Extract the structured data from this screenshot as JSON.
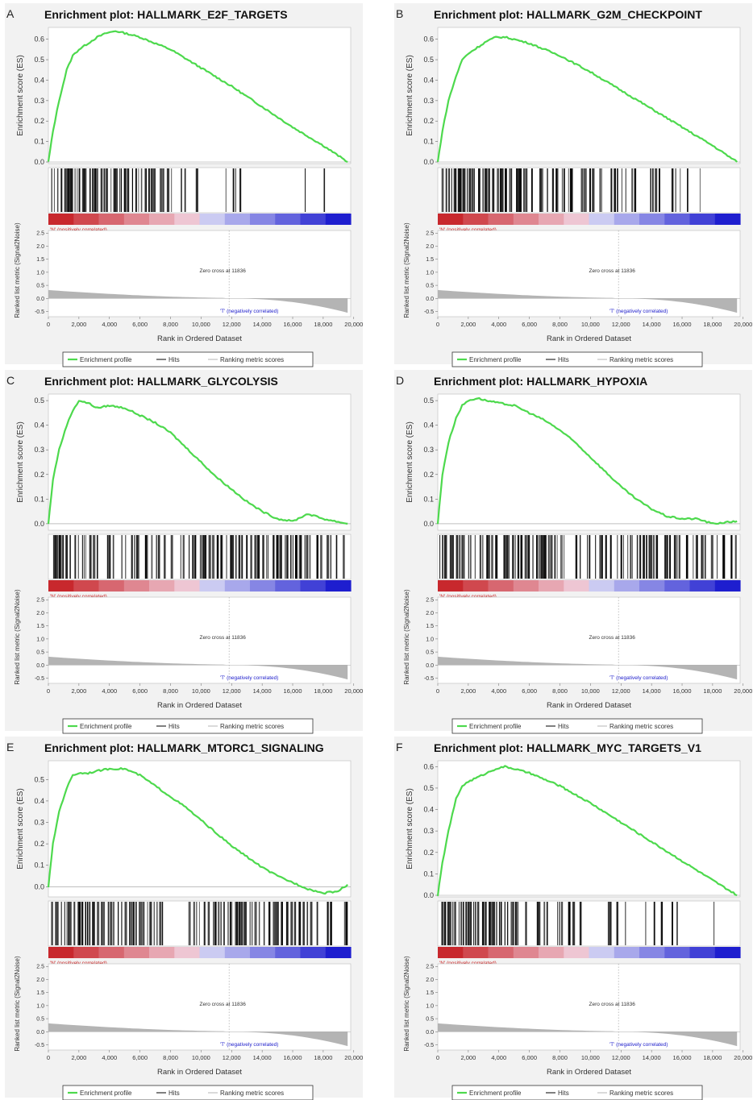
{
  "figure": {
    "shared": {
      "es_axis_label": "Enrichment score (ES)",
      "metric_axis_label": "Ranked list metric (Signal2Noise)",
      "x_axis_label": "Rank in Ordered Dataset",
      "pos_label": "'N' (positively correlated)",
      "neg_label": "'T' (negatively correlated)",
      "zero_cross_label": "Zero cross at 11836",
      "zero_cross": 11836,
      "legend": {
        "profile": "Enrichment profile",
        "hits": "Hits",
        "metric": "Ranking metric scores"
      },
      "x_ticks": [
        0,
        2000,
        4000,
        6000,
        8000,
        10000,
        12000,
        14000,
        16000,
        18000,
        20000
      ],
      "x_tick_labels": [
        "0",
        "2,000",
        "4,000",
        "6,000",
        "8,000",
        "10,000",
        "12,000",
        "14,000",
        "16,000",
        "18,000",
        "20,000"
      ],
      "x_max": 19800,
      "metric_ticks": [
        "2.5",
        "2.0",
        "1.5",
        "1.0",
        "0.5",
        "0.0",
        "-0.5"
      ],
      "colors": {
        "profile": "#4dd94d",
        "hits": "#000000",
        "metric": "#b4b4b4",
        "red": "#c8282d",
        "blue": "#1e1ecf",
        "pos_text": "#cc2222",
        "neg_text": "#2222cc"
      }
    }
  },
  "chart_data": [
    {
      "panel_letter": "A",
      "type": "line",
      "title": "Enrichment plot: HALLMARK_E2F_TARGETS",
      "xlabel": "Rank in Ordered Dataset",
      "ylabel": "Enrichment score (ES)",
      "ylim": [
        0,
        0.65
      ],
      "y_ticks": [
        "0.0",
        "0.1",
        "0.2",
        "0.3",
        "0.4",
        "0.5",
        "0.6"
      ],
      "x": [
        0,
        300,
        700,
        1200,
        1600,
        2000,
        2600,
        3200,
        3800,
        4400,
        5000,
        6000,
        8000,
        10000,
        12000,
        14000,
        16000,
        18000,
        19600
      ],
      "y": [
        0.0,
        0.15,
        0.3,
        0.45,
        0.52,
        0.55,
        0.58,
        0.61,
        0.63,
        0.64,
        0.63,
        0.61,
        0.55,
        0.46,
        0.37,
        0.27,
        0.17,
        0.08,
        0.0
      ],
      "hit_zones": [
        [
          0,
          6400,
          1.0
        ],
        [
          6400,
          9400,
          0.55
        ],
        [
          9400,
          15200,
          0.12
        ],
        [
          15200,
          18200,
          0.1
        ],
        [
          18200,
          19600,
          0.0
        ]
      ]
    },
    {
      "panel_letter": "B",
      "type": "line",
      "title": "Enrichment plot: HALLMARK_G2M_CHECKPOINT",
      "xlabel": "Rank in Ordered Dataset",
      "ylabel": "Enrichment score (ES)",
      "ylim": [
        0,
        0.65
      ],
      "y_ticks": [
        "0.0",
        "0.1",
        "0.2",
        "0.3",
        "0.4",
        "0.5",
        "0.6"
      ],
      "x": [
        0,
        300,
        700,
        1200,
        1600,
        2000,
        2600,
        3200,
        3800,
        4400,
        5000,
        6000,
        8000,
        10000,
        12000,
        14000,
        16000,
        18000,
        19600
      ],
      "y": [
        0.0,
        0.15,
        0.3,
        0.42,
        0.5,
        0.53,
        0.56,
        0.59,
        0.61,
        0.61,
        0.6,
        0.58,
        0.52,
        0.44,
        0.35,
        0.26,
        0.17,
        0.08,
        0.0
      ],
      "hit_zones": [
        [
          0,
          5000,
          1.0
        ],
        [
          5000,
          9000,
          0.75
        ],
        [
          9000,
          15000,
          0.45
        ],
        [
          15000,
          18000,
          0.3
        ],
        [
          18000,
          19600,
          0.15
        ]
      ]
    },
    {
      "panel_letter": "C",
      "type": "line",
      "title": "Enrichment plot: HALLMARK_GLYCOLYSIS",
      "xlabel": "Rank in Ordered Dataset",
      "ylabel": "Enrichment score (ES)",
      "ylim": [
        -0.02,
        0.52
      ],
      "y_ticks": [
        "0.0",
        "0.1",
        "0.2",
        "0.3",
        "0.4",
        "0.5"
      ],
      "x": [
        0,
        300,
        700,
        1200,
        1600,
        2000,
        2600,
        3200,
        4000,
        5000,
        6000,
        7000,
        8000,
        9000,
        10000,
        11000,
        12000,
        13000,
        14000,
        15000,
        16000,
        17000,
        18000,
        19600
      ],
      "y": [
        0.0,
        0.18,
        0.3,
        0.4,
        0.46,
        0.5,
        0.49,
        0.47,
        0.48,
        0.47,
        0.44,
        0.41,
        0.37,
        0.31,
        0.25,
        0.19,
        0.14,
        0.09,
        0.05,
        0.02,
        0.01,
        0.04,
        0.02,
        0.0
      ],
      "hit_zones": [
        [
          0,
          3000,
          1.0
        ],
        [
          3000,
          9000,
          0.65
        ],
        [
          9000,
          16000,
          0.85
        ],
        [
          16000,
          19600,
          0.5
        ]
      ]
    },
    {
      "panel_letter": "D",
      "type": "line",
      "title": "Enrichment plot: HALLMARK_HYPOXIA",
      "xlabel": "Rank in Ordered Dataset",
      "ylabel": "Enrichment score (ES)",
      "ylim": [
        -0.02,
        0.52
      ],
      "y_ticks": [
        "0.0",
        "0.1",
        "0.2",
        "0.3",
        "0.4",
        "0.5"
      ],
      "x": [
        0,
        300,
        700,
        1200,
        1600,
        2000,
        2600,
        3200,
        4000,
        5000,
        6000,
        7000,
        8000,
        9000,
        10000,
        11000,
        12000,
        13000,
        14000,
        15000,
        16000,
        17000,
        18000,
        19600
      ],
      "y": [
        0.0,
        0.2,
        0.33,
        0.43,
        0.48,
        0.5,
        0.51,
        0.5,
        0.49,
        0.48,
        0.45,
        0.42,
        0.38,
        0.33,
        0.27,
        0.21,
        0.15,
        0.1,
        0.06,
        0.03,
        0.02,
        0.02,
        0.0,
        0.01
      ],
      "hit_zones": [
        [
          0,
          3000,
          1.0
        ],
        [
          3000,
          10000,
          0.7
        ],
        [
          10000,
          16000,
          0.9
        ],
        [
          16000,
          19600,
          0.55
        ]
      ]
    },
    {
      "panel_letter": "E",
      "type": "line",
      "title": "Enrichment plot: HALLMARK_MTORC1_SIGNALING",
      "xlabel": "Rank in Ordered Dataset",
      "ylabel": "Enrichment score (ES)",
      "ylim": [
        -0.04,
        0.58
      ],
      "y_ticks": [
        "0.0",
        "0.1",
        "0.2",
        "0.3",
        "0.4",
        "0.5"
      ],
      "x": [
        0,
        300,
        700,
        1200,
        1600,
        2000,
        2600,
        3200,
        4000,
        5000,
        6000,
        7000,
        8000,
        9000,
        10000,
        11000,
        12000,
        13000,
        14000,
        15000,
        16000,
        17000,
        18000,
        19000,
        19600
      ],
      "y": [
        0.0,
        0.2,
        0.35,
        0.46,
        0.52,
        0.53,
        0.53,
        0.54,
        0.55,
        0.55,
        0.52,
        0.47,
        0.42,
        0.37,
        0.31,
        0.25,
        0.19,
        0.14,
        0.09,
        0.05,
        0.02,
        -0.01,
        -0.03,
        -0.02,
        0.01
      ],
      "hit_zones": [
        [
          0,
          7500,
          1.0
        ],
        [
          7500,
          9000,
          0.0
        ],
        [
          9000,
          15500,
          0.95
        ],
        [
          15500,
          19600,
          0.8
        ]
      ]
    },
    {
      "panel_letter": "F",
      "type": "line",
      "title": "Enrichment plot: HALLMARK_MYC_TARGETS_V1",
      "xlabel": "Rank in Ordered Dataset",
      "ylabel": "Enrichment score (ES)",
      "ylim": [
        0,
        0.62
      ],
      "y_ticks": [
        "0.0",
        "0.1",
        "0.2",
        "0.3",
        "0.4",
        "0.5",
        "0.6"
      ],
      "x": [
        0,
        300,
        700,
        1200,
        1600,
        2000,
        2600,
        3200,
        3800,
        4400,
        5000,
        6000,
        8000,
        10000,
        12000,
        14000,
        16000,
        18000,
        19600
      ],
      "y": [
        0.0,
        0.15,
        0.3,
        0.45,
        0.51,
        0.53,
        0.55,
        0.57,
        0.59,
        0.6,
        0.59,
        0.57,
        0.51,
        0.43,
        0.34,
        0.25,
        0.16,
        0.07,
        0.0
      ],
      "hit_zones": [
        [
          0,
          5500,
          1.0
        ],
        [
          5500,
          10000,
          0.6
        ],
        [
          10000,
          15500,
          0.3
        ],
        [
          15500,
          19600,
          0.05
        ]
      ]
    }
  ]
}
